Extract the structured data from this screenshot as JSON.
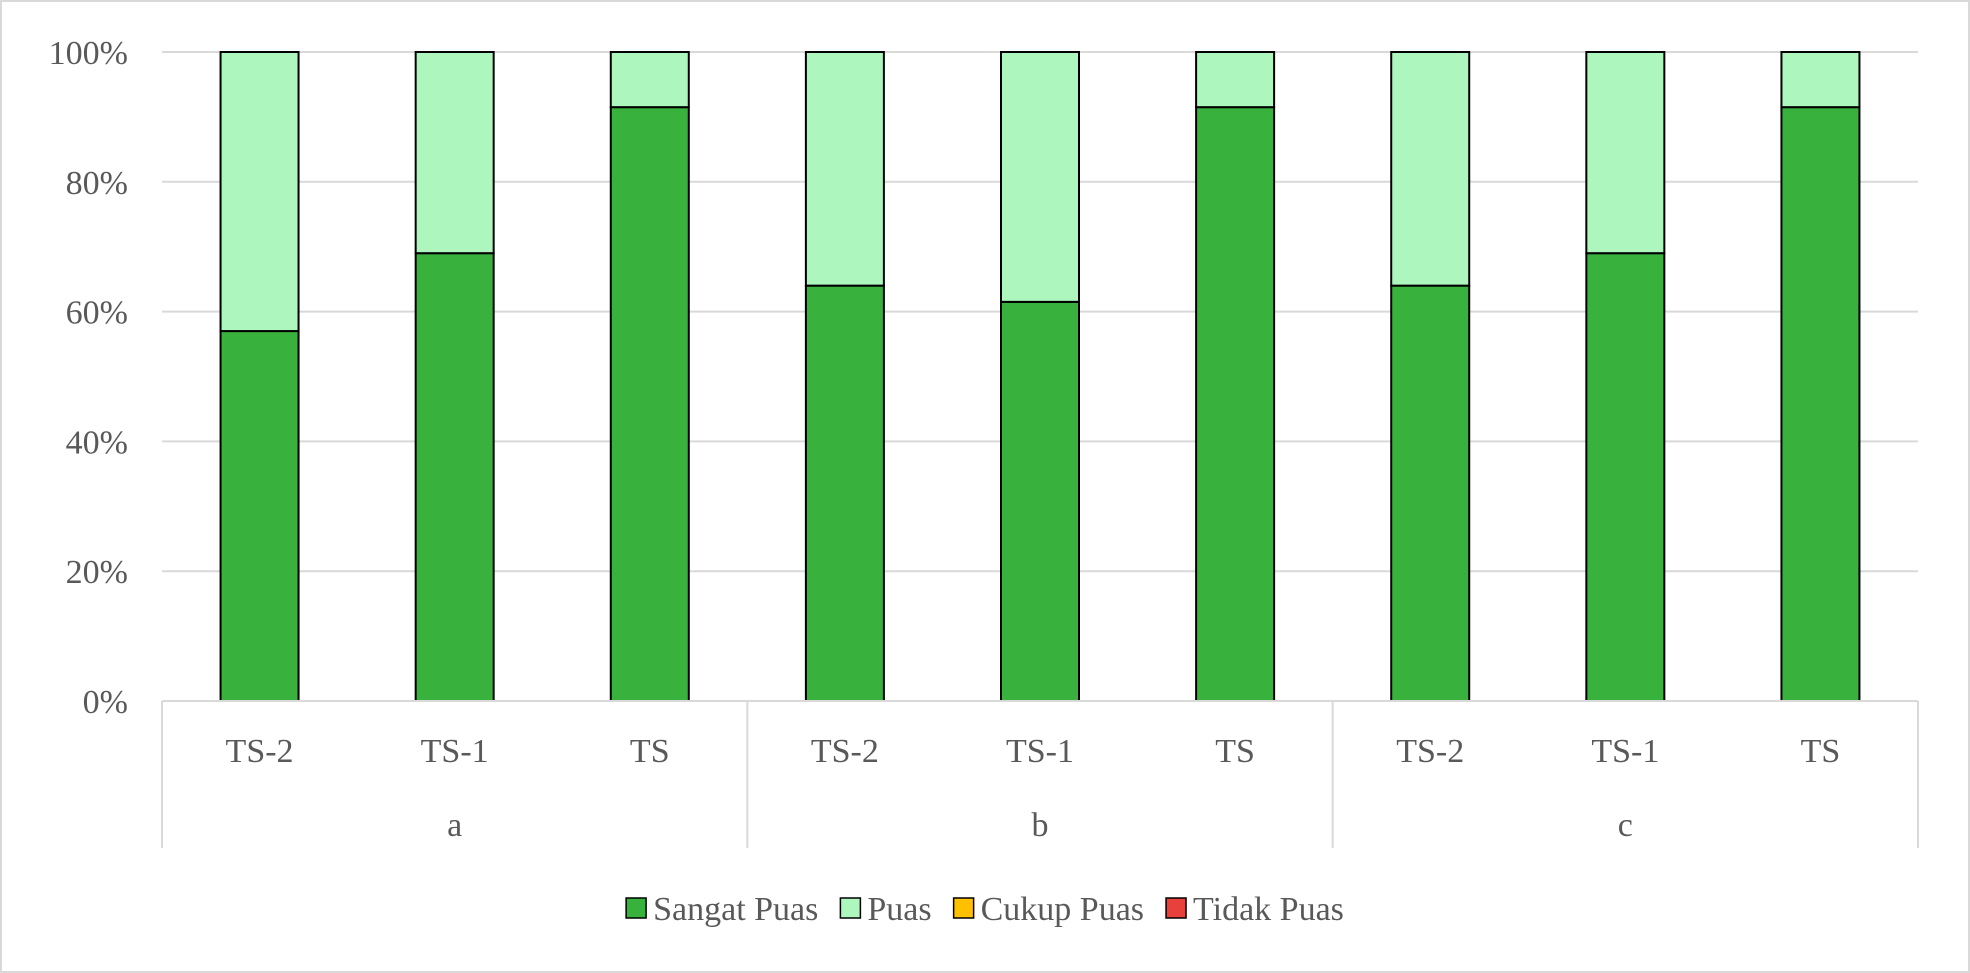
{
  "chart_data": {
    "type": "bar",
    "stacked": "percent",
    "groups": [
      "a",
      "b",
      "c"
    ],
    "categories": [
      "TS-2",
      "TS-1",
      "TS",
      "TS-2",
      "TS-1",
      "TS",
      "TS-2",
      "TS-1",
      "TS"
    ],
    "series": [
      {
        "name": "Sangat Puas",
        "color": "#39b13d",
        "values": [
          57,
          69,
          91.5,
          64,
          61.5,
          91.5,
          64,
          69,
          91.5
        ]
      },
      {
        "name": "Puas",
        "color": "#adf7be",
        "values": [
          43,
          31,
          8.5,
          36,
          38.5,
          8.5,
          36,
          31,
          8.5
        ]
      },
      {
        "name": "Cukup Puas",
        "color": "#ffc000",
        "values": [
          0,
          0,
          0,
          0,
          0,
          0,
          0,
          0,
          0
        ]
      },
      {
        "name": "Tidak Puas",
        "color": "#e8403b",
        "values": [
          0,
          0,
          0,
          0,
          0,
          0,
          0,
          0,
          0
        ]
      }
    ],
    "yticks": [
      "0%",
      "20%",
      "40%",
      "60%",
      "80%",
      "100%"
    ],
    "ylim": [
      0,
      100
    ],
    "grid": true,
    "legend": "bottom"
  }
}
